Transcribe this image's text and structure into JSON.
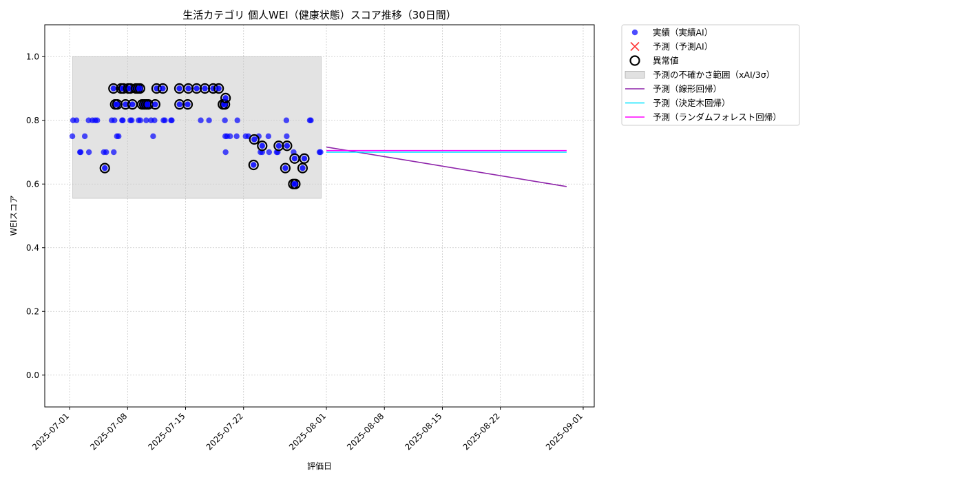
{
  "chart_data": {
    "type": "scatter",
    "title": "生活カテゴリ 個人WEI（健康状態）スコア推移（30日間）",
    "xlabel": "評価日",
    "ylabel": "WEIスコア",
    "xlim": [
      "2025-06-28T00:00",
      "2025-09-02T08:00"
    ],
    "ylim": [
      -0.1,
      1.1
    ],
    "x_ticks": [
      "2025-07-01",
      "2025-07-08",
      "2025-07-15",
      "2025-07-22",
      "2025-08-01",
      "2025-08-08",
      "2025-08-15",
      "2025-08-22",
      "2025-09-01"
    ],
    "y_ticks": [
      0.0,
      0.2,
      0.4,
      0.6,
      0.8,
      1.0
    ],
    "grid": true,
    "legend_position": "outside-top-right",
    "colors": {
      "actual": "#0000ff",
      "predicted": "#ff3333",
      "anomaly": "#000000",
      "uncertainty": "#c8c8c8",
      "linear": "#8e24aa",
      "decision_tree": "#00e5ff",
      "random_forest": "#ff00ff"
    },
    "uncertainty_band": {
      "label": "予測の不確かさ範囲（xAI/3σ）",
      "x": [
        "2025-07-01T09:00",
        "2025-07-31T09:00"
      ],
      "y": [
        0.555,
        1.0
      ]
    },
    "series": [
      {
        "name": "実績（実績AI）",
        "kind": "scatter",
        "points": [
          [
            "2025-07-01T08:00",
            0.75
          ],
          [
            "2025-07-01T10:00",
            0.8
          ],
          [
            "2025-07-01T20:00",
            0.8
          ],
          [
            "2025-07-02T06:00",
            0.7
          ],
          [
            "2025-07-02T08:00",
            0.7
          ],
          [
            "2025-07-02T20:00",
            0.75
          ],
          [
            "2025-07-03T08:00",
            0.7
          ],
          [
            "2025-07-03T07:00",
            0.8
          ],
          [
            "2025-07-03T18:00",
            0.8
          ],
          [
            "2025-07-04T02:00",
            0.8
          ],
          [
            "2025-07-04T08:00",
            0.8
          ],
          [
            "2025-07-05T03:00",
            0.7
          ],
          [
            "2025-07-05T10:00",
            0.7
          ],
          [
            "2025-07-06T02:00",
            0.8
          ],
          [
            "2025-07-06T08:00",
            0.7
          ],
          [
            "2025-07-06T10:00",
            0.8
          ],
          [
            "2025-07-06T17:00",
            0.75
          ],
          [
            "2025-07-06T22:00",
            0.75
          ],
          [
            "2025-07-07T08:00",
            0.8
          ],
          [
            "2025-07-07T10:00",
            0.8
          ],
          [
            "2025-07-08T08:00",
            0.8
          ],
          [
            "2025-07-08T12:00",
            0.8
          ],
          [
            "2025-07-09T08:00",
            0.8
          ],
          [
            "2025-07-09T13:00",
            0.8
          ],
          [
            "2025-07-10T06:00",
            0.8
          ],
          [
            "2025-07-10T20:00",
            0.8
          ],
          [
            "2025-07-11T02:00",
            0.75
          ],
          [
            "2025-07-11T06:00",
            0.8
          ],
          [
            "2025-07-12T08:00",
            0.8
          ],
          [
            "2025-07-12T12:00",
            0.8
          ],
          [
            "2025-07-13T06:00",
            0.8
          ],
          [
            "2025-07-13T08:00",
            0.8
          ],
          [
            "2025-07-16T20:00",
            0.8
          ],
          [
            "2025-07-17T20:00",
            0.8
          ],
          [
            "2025-07-19T18:00",
            0.8
          ],
          [
            "2025-07-19T19:00",
            0.75
          ],
          [
            "2025-07-19T20:00",
            0.7
          ],
          [
            "2025-07-20T00:00",
            0.75
          ],
          [
            "2025-07-20T09:00",
            0.75
          ],
          [
            "2025-07-21T06:00",
            0.8
          ],
          [
            "2025-07-21T04:00",
            0.75
          ],
          [
            "2025-07-22T06:00",
            0.75
          ],
          [
            "2025-07-22T14:00",
            0.75
          ],
          [
            "2025-07-23T20:00",
            0.75
          ],
          [
            "2025-07-24T01:00",
            0.7
          ],
          [
            "2025-07-24T06:00",
            0.7
          ],
          [
            "2025-07-25T00:00",
            0.75
          ],
          [
            "2025-07-25T02:00",
            0.7
          ],
          [
            "2025-07-26T00:00",
            0.7
          ],
          [
            "2025-07-26T03:00",
            0.7
          ],
          [
            "2025-07-27T04:00",
            0.8
          ],
          [
            "2025-07-27T05:00",
            0.75
          ],
          [
            "2025-07-28T01:00",
            0.7
          ],
          [
            "2025-07-30T00:00",
            0.8
          ],
          [
            "2025-07-30T03:00",
            0.8
          ],
          [
            "2025-07-31T04:00",
            0.7
          ],
          [
            "2025-07-31T07:00",
            0.7
          ]
        ]
      },
      {
        "name": "予測（予測AI）",
        "kind": "scatter",
        "points": []
      },
      {
        "name": "異常値",
        "kind": "scatter",
        "points": [
          [
            "2025-07-05T06:00",
            0.65
          ],
          [
            "2025-07-06T07:00",
            0.9
          ],
          [
            "2025-07-06T12:00",
            0.85
          ],
          [
            "2025-07-06T18:00",
            0.85
          ],
          [
            "2025-07-07T05:00",
            0.9
          ],
          [
            "2025-07-07T12:00",
            0.9
          ],
          [
            "2025-07-07T18:00",
            0.85
          ],
          [
            "2025-07-08T02:00",
            0.9
          ],
          [
            "2025-07-08T08:00",
            0.9
          ],
          [
            "2025-07-08T14:00",
            0.85
          ],
          [
            "2025-07-09T00:00",
            0.9
          ],
          [
            "2025-07-09T06:00",
            0.9
          ],
          [
            "2025-07-09T12:00",
            0.9
          ],
          [
            "2025-07-09T18:00",
            0.85
          ],
          [
            "2025-07-10T00:00",
            0.85
          ],
          [
            "2025-07-10T06:00",
            0.85
          ],
          [
            "2025-07-10T12:00",
            0.85
          ],
          [
            "2025-07-11T08:00",
            0.85
          ],
          [
            "2025-07-11T12:00",
            0.9
          ],
          [
            "2025-07-12T06:00",
            0.9
          ],
          [
            "2025-07-14T06:00",
            0.9
          ],
          [
            "2025-07-14T06:30",
            0.85
          ],
          [
            "2025-07-15T06:00",
            0.85
          ],
          [
            "2025-07-15T08:00",
            0.9
          ],
          [
            "2025-07-16T08:00",
            0.9
          ],
          [
            "2025-07-17T08:00",
            0.9
          ],
          [
            "2025-07-18T08:00",
            0.9
          ],
          [
            "2025-07-19T00:00",
            0.9
          ],
          [
            "2025-07-19T12:00",
            0.85
          ],
          [
            "2025-07-19T18:00",
            0.85
          ],
          [
            "2025-07-19T20:00",
            0.87
          ],
          [
            "2025-07-23T07:00",
            0.74
          ],
          [
            "2025-07-23T05:00",
            0.66
          ],
          [
            "2025-07-24T06:00",
            0.72
          ],
          [
            "2025-07-26T06:00",
            0.72
          ],
          [
            "2025-07-27T01:00",
            0.65
          ],
          [
            "2025-07-27T06:00",
            0.72
          ],
          [
            "2025-07-28T00:00",
            0.6
          ],
          [
            "2025-07-28T04:00",
            0.68
          ],
          [
            "2025-07-28T06:00",
            0.6
          ],
          [
            "2025-07-29T03:00",
            0.65
          ],
          [
            "2025-07-29T08:00",
            0.68
          ]
        ]
      },
      {
        "name": "予測（線形回帰）",
        "kind": "line",
        "points": [
          [
            "2025-08-01T00:00",
            0.716
          ],
          [
            "2025-08-30T00:00",
            0.592
          ]
        ]
      },
      {
        "name": "予測（決定木回帰）",
        "kind": "line",
        "points": [
          [
            "2025-08-01T00:00",
            0.7
          ],
          [
            "2025-08-30T00:00",
            0.7
          ]
        ]
      },
      {
        "name": "予測（ランダムフォレスト回帰）",
        "kind": "line",
        "points": [
          [
            "2025-08-01T00:00",
            0.705
          ],
          [
            "2025-08-30T00:00",
            0.705
          ]
        ]
      }
    ]
  }
}
